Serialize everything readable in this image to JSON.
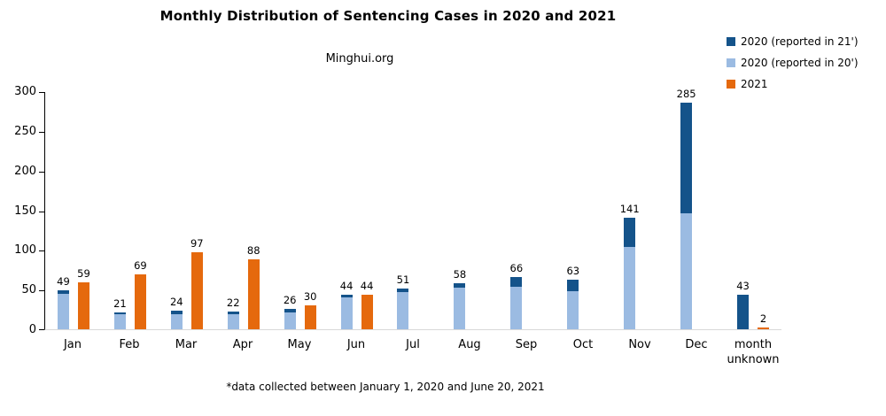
{
  "chart_data": {
    "type": "bar",
    "title": "Monthly Distribution of Sentencing Cases in 2020 and 2021",
    "subtitle": "Minghui.org",
    "footnote": "*data collected between January 1, 2020 and June 20, 2021",
    "categories": [
      "Jan",
      "Feb",
      "Mar",
      "Apr",
      "May",
      "Jun",
      "Jul",
      "Aug",
      "Sep",
      "Oct",
      "Nov",
      "Dec",
      "month unknown"
    ],
    "legend_position": "top-right",
    "grid": false,
    "ylim": [
      0,
      300
    ],
    "yticks": [
      0,
      50,
      100,
      150,
      200,
      250,
      300
    ],
    "series": [
      {
        "name": "2020 (reported in 21')",
        "color": "#14538A",
        "stack": "2020",
        "values": [
          4,
          2,
          5,
          3,
          5,
          4,
          4,
          6,
          13,
          15,
          37,
          139,
          43
        ],
        "note": "stack split estimated from bar pixel heights; only stack totals are labeled in the image"
      },
      {
        "name": "2020 (reported in 20')",
        "color": "#9BBBE2",
        "stack": "2020",
        "values": [
          45,
          19,
          19,
          19,
          21,
          40,
          47,
          52,
          53,
          48,
          104,
          146,
          0
        ]
      },
      {
        "name": "2021",
        "color": "#E5690D",
        "values": [
          59,
          69,
          97,
          88,
          30,
          44,
          null,
          null,
          null,
          null,
          null,
          null,
          2
        ]
      }
    ],
    "stack_total_labels": [
      49,
      21,
      24,
      22,
      26,
      44,
      51,
      58,
      66,
      63,
      141,
      285,
      43
    ]
  },
  "axis": {
    "y_axis_color": "#000000",
    "x_baseline_color": "#D9D9D9"
  }
}
